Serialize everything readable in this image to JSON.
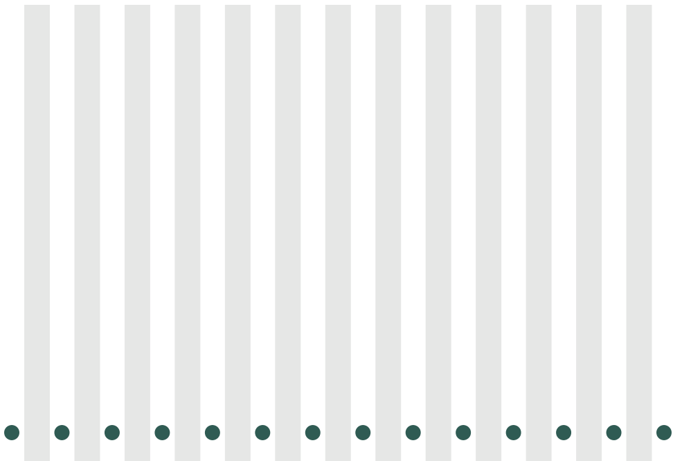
{
  "colors": {
    "background": "#ffffff",
    "stripe": "#e6e7e6",
    "dot": "#2f5b53"
  },
  "pattern": {
    "stripe_count": 13,
    "dot_count": 14
  }
}
